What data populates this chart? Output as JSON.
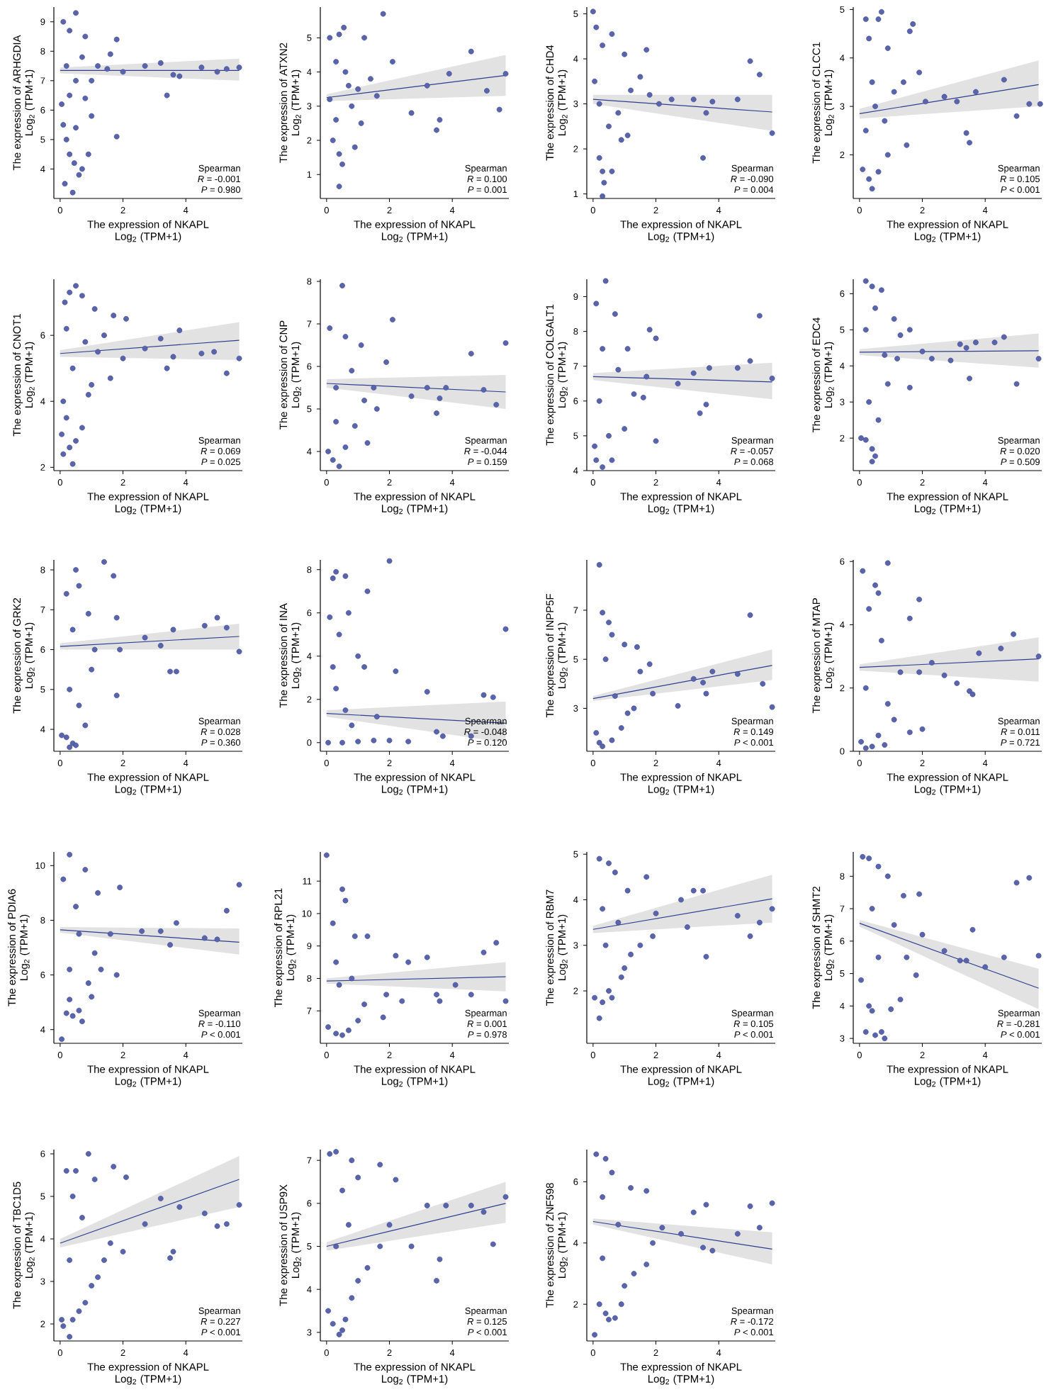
{
  "chart_data": [
    {
      "type": "scatter",
      "xlabel": "The expression of NKAPL\nLog$_{2}$ (TPM+1)",
      "ylabel": "The expression of ARHGDIA\nLog$_{2}$ (TPM+1)",
      "xlim": [
        -0.2,
        5.8
      ],
      "ylim": [
        3.0,
        9.5
      ],
      "xticks": [
        0,
        2,
        4
      ],
      "yticks": [
        4,
        5,
        6,
        7,
        8,
        9
      ],
      "annotations": [
        "Spearman",
        "*R* = -0.001",
        "*P* = 0.980"
      ],
      "series": [
        {
          "marker": "circle",
          "color": "#5a64ab",
          "x": [
            0.1,
            0.5,
            0.3,
            0.8,
            0.05,
            0.1,
            0.2,
            0.3,
            0.45,
            0.5,
            0.7,
            0.9,
            0.6,
            0.15,
            0.4,
            1.0,
            1.2,
            1.5,
            1.8,
            1.8,
            1.6,
            2.0,
            2.7,
            3.2,
            3.4,
            3.6,
            3.8,
            4.5,
            5.0,
            5.3,
            5.7,
            0.2,
            0.5,
            0.3,
            0.7,
            1.0,
            0.8
          ],
          "values": [
            9.0,
            9.3,
            8.7,
            8.5,
            6.2,
            5.5,
            5.0,
            4.5,
            4.2,
            5.4,
            4.0,
            4.5,
            3.8,
            3.5,
            3.2,
            5.8,
            7.5,
            7.4,
            8.4,
            5.1,
            7.9,
            7.3,
            7.5,
            7.6,
            6.5,
            7.2,
            7.15,
            7.45,
            7.3,
            7.4,
            7.45,
            7.5,
            7.0,
            6.5,
            7.8,
            7.0,
            6.4
          ]
        },
        {
          "type": "line",
          "color": "#2f3d8f",
          "x": [
            0,
            5.7
          ],
          "values": [
            7.35,
            7.35
          ],
          "lower": [
            7.25,
            7.0
          ],
          "upper": [
            7.45,
            7.75
          ]
        }
      ]
    },
    {
      "type": "scatter",
      "xlabel": "The expression of NKAPL\nLog$_{2}$ (TPM+1)",
      "ylabel": "The expression of ATXN2\nLog$_{2}$ (TPM+1)",
      "xlim": [
        -0.2,
        5.8
      ],
      "ylim": [
        0.3,
        5.9
      ],
      "xticks": [
        0,
        2,
        4
      ],
      "yticks": [
        1,
        2,
        3,
        4,
        5
      ],
      "annotations": [
        "Spearman",
        "*R* = 0.100",
        "*P* = 0.001"
      ],
      "series": [
        {
          "marker": "circle",
          "color": "#5a64ab",
          "x": [
            0.1,
            0.4,
            0.55,
            1.2,
            1.8,
            0.3,
            0.6,
            0.8,
            0.2,
            0.4,
            0.5,
            0.4,
            0.9,
            1.0,
            1.4,
            2.1,
            2.7,
            3.2,
            3.5,
            3.6,
            3.9,
            4.6,
            5.1,
            5.5,
            5.7,
            0.1,
            0.3,
            0.7,
            1.1,
            1.6
          ],
          "values": [
            5.0,
            5.1,
            5.3,
            5.0,
            5.7,
            4.3,
            4.0,
            3.0,
            2.0,
            1.6,
            1.3,
            0.65,
            1.8,
            3.5,
            3.8,
            4.3,
            2.8,
            3.6,
            2.3,
            2.6,
            3.95,
            4.6,
            3.45,
            2.9,
            3.95,
            3.2,
            2.6,
            3.6,
            2.5,
            3.3
          ]
        },
        {
          "type": "line",
          "color": "#2f3d8f",
          "x": [
            0,
            5.7
          ],
          "values": [
            3.25,
            3.9
          ],
          "lower": [
            3.15,
            3.3
          ],
          "upper": [
            3.35,
            4.5
          ]
        }
      ]
    },
    {
      "type": "scatter",
      "xlabel": "The expression of NKAPL\nLog$_{2}$ (TPM+1)",
      "ylabel": "The expression of CHD4\nLog$_{2}$ (TPM+1)",
      "xlim": [
        -0.2,
        5.8
      ],
      "ylim": [
        0.9,
        5.15
      ],
      "xticks": [
        0,
        2,
        4
      ],
      "yticks": [
        1,
        2,
        3,
        4,
        5
      ],
      "annotations": [
        "Spearman",
        "*R* = -0.090",
        "*P* = 0.004"
      ],
      "series": [
        {
          "marker": "circle",
          "color": "#5a64ab",
          "x": [
            0.0,
            0.1,
            0.6,
            1.0,
            1.7,
            0.3,
            0.2,
            0.5,
            0.2,
            0.3,
            0.35,
            0.3,
            0.6,
            0.9,
            1.2,
            1.5,
            1.8,
            2.1,
            2.5,
            3.2,
            3.5,
            3.6,
            3.8,
            4.6,
            5.0,
            5.3,
            5.7,
            0.8,
            1.1,
            0.05
          ],
          "values": [
            5.05,
            4.7,
            4.55,
            4.1,
            4.2,
            4.3,
            3.0,
            2.5,
            1.8,
            1.5,
            1.25,
            0.95,
            1.5,
            2.2,
            3.3,
            3.6,
            3.2,
            3.0,
            3.1,
            3.1,
            1.8,
            2.8,
            3.05,
            3.1,
            3.95,
            3.65,
            2.35,
            2.8,
            2.3,
            3.5
          ]
        },
        {
          "type": "line",
          "color": "#2f3d8f",
          "x": [
            0,
            5.7
          ],
          "values": [
            3.1,
            2.82
          ],
          "lower": [
            3.0,
            2.4
          ],
          "upper": [
            3.2,
            3.2
          ]
        }
      ]
    },
    {
      "type": "scatter",
      "xlabel": "The expression of NKAPL\nLog$_{2}$ (TPM+1)",
      "ylabel": "The expression of CLCC1\nLog$_{2}$ (TPM+1)",
      "xlim": [
        -0.2,
        5.8
      ],
      "ylim": [
        1.1,
        5.05
      ],
      "xticks": [
        0,
        2,
        4
      ],
      "yticks": [
        2,
        3,
        4,
        5
      ],
      "annotations": [
        "Spearman",
        "*R* = 0.105",
        "*P* < 0.001"
      ],
      "series": [
        {
          "marker": "circle",
          "color": "#5a64ab",
          "x": [
            0.2,
            0.3,
            0.6,
            0.7,
            0.9,
            1.6,
            1.7,
            0.4,
            0.2,
            0.1,
            0.3,
            0.4,
            0.6,
            0.9,
            1.1,
            1.4,
            1.5,
            1.9,
            2.1,
            2.7,
            3.1,
            3.4,
            3.5,
            3.7,
            4.6,
            5.0,
            5.4,
            5.75,
            0.5,
            0.8
          ],
          "values": [
            4.8,
            4.4,
            4.8,
            4.95,
            4.2,
            4.55,
            4.7,
            3.5,
            2.5,
            1.7,
            1.5,
            1.3,
            1.65,
            2.0,
            3.3,
            3.5,
            2.2,
            3.7,
            3.1,
            3.2,
            3.1,
            2.45,
            2.25,
            3.3,
            3.55,
            2.8,
            3.05,
            3.05,
            3.0,
            2.7
          ]
        },
        {
          "type": "line",
          "color": "#2f3d8f",
          "x": [
            0,
            5.7
          ],
          "values": [
            2.85,
            3.45
          ],
          "lower": [
            2.75,
            3.0
          ],
          "upper": [
            2.95,
            3.95
          ]
        }
      ]
    },
    {
      "type": "scatter",
      "xlabel": "The expression of NKAPL\nLog$_{2}$ (TPM+1)",
      "ylabel": "The expression of CNOT1\nLog$_{2}$ (TPM+1)",
      "xlim": [
        -0.2,
        5.8
      ],
      "ylim": [
        1.9,
        7.7
      ],
      "xticks": [
        0,
        2,
        4
      ],
      "yticks": [
        2,
        4,
        6
      ],
      "annotations": [
        "Spearman",
        "*R* = 0.069",
        "*P* = 0.025"
      ],
      "series": [
        {
          "marker": "circle",
          "color": "#5a64ab",
          "x": [
            0.5,
            0.3,
            0.15,
            0.7,
            1.1,
            1.7,
            2.1,
            0.2,
            0.4,
            0.1,
            0.2,
            0.05,
            0.1,
            0.3,
            0.4,
            0.5,
            0.7,
            0.9,
            1.2,
            1.4,
            1.6,
            2.0,
            2.7,
            3.2,
            3.4,
            3.6,
            3.8,
            4.5,
            4.9,
            5.3,
            5.7,
            0.8,
            1.0
          ],
          "values": [
            7.5,
            7.3,
            7.0,
            7.2,
            6.8,
            6.6,
            6.5,
            6.2,
            5.0,
            4.0,
            3.5,
            3.0,
            2.4,
            2.6,
            2.1,
            2.8,
            3.2,
            4.2,
            5.5,
            6.0,
            4.7,
            5.3,
            5.6,
            5.9,
            5.0,
            5.35,
            6.15,
            5.45,
            5.5,
            4.85,
            5.3,
            5.8,
            4.5
          ]
        },
        {
          "type": "line",
          "color": "#2f3d8f",
          "x": [
            0,
            5.7
          ],
          "values": [
            5.45,
            5.85
          ],
          "lower": [
            5.35,
            5.25
          ],
          "upper": [
            5.55,
            6.4
          ]
        }
      ]
    },
    {
      "type": "scatter",
      "xlabel": "The expression of NKAPL\nLog$_{2}$ (TPM+1)",
      "ylabel": "The expression of CNP\nLog$_{2}$ (TPM+1)",
      "xlim": [
        -0.2,
        5.8
      ],
      "ylim": [
        3.55,
        8.05
      ],
      "xticks": [
        0,
        2,
        4
      ],
      "yticks": [
        4,
        5,
        6,
        7,
        8
      ],
      "annotations": [
        "Spearman",
        "*R* = -0.044",
        "*P* = 0.159"
      ],
      "series": [
        {
          "marker": "circle",
          "color": "#5a64ab",
          "x": [
            0.5,
            0.1,
            0.6,
            1.1,
            2.1,
            1.9,
            0.3,
            0.05,
            0.2,
            0.4,
            0.6,
            1.3,
            0.9,
            1.2,
            1.5,
            2.7,
            3.2,
            3.5,
            3.6,
            3.8,
            4.6,
            5.0,
            5.4,
            5.7,
            0.8,
            1.6,
            0.3
          ],
          "values": [
            7.9,
            6.9,
            6.7,
            6.5,
            7.1,
            6.1,
            5.5,
            4.0,
            3.8,
            3.65,
            4.1,
            4.2,
            4.6,
            5.2,
            5.5,
            5.3,
            5.5,
            4.9,
            5.25,
            5.5,
            6.3,
            5.45,
            5.1,
            6.55,
            5.9,
            5.0,
            4.7
          ]
        },
        {
          "type": "line",
          "color": "#2f3d8f",
          "x": [
            0,
            5.7
          ],
          "values": [
            5.6,
            5.4
          ],
          "lower": [
            5.5,
            5.0
          ],
          "upper": [
            5.7,
            5.8
          ]
        }
      ]
    },
    {
      "type": "scatter",
      "xlabel": "The expression of NKAPL\nLog$_{2}$ (TPM+1)",
      "ylabel": "The expression of COLGALT1\nLog$_{2}$ (TPM+1)",
      "xlim": [
        -0.2,
        5.8
      ],
      "ylim": [
        4.0,
        9.5
      ],
      "xticks": [
        0,
        2,
        4
      ],
      "yticks": [
        4,
        5,
        6,
        7,
        8,
        9
      ],
      "annotations": [
        "Spearman",
        "*R* = -0.057",
        "*P* = 0.068"
      ],
      "series": [
        {
          "marker": "circle",
          "color": "#5a64ab",
          "x": [
            0.4,
            0.1,
            0.7,
            1.8,
            2.0,
            0.3,
            0.2,
            0.05,
            0.1,
            0.3,
            0.6,
            0.5,
            1.0,
            1.3,
            1.6,
            2.0,
            1.7,
            2.7,
            3.2,
            3.4,
            3.6,
            3.7,
            4.6,
            5.0,
            5.3,
            5.7,
            0.8,
            1.1
          ],
          "values": [
            9.45,
            8.8,
            8.5,
            8.05,
            7.8,
            7.5,
            6.0,
            4.7,
            4.3,
            4.1,
            4.3,
            5.0,
            5.2,
            6.2,
            6.1,
            4.85,
            6.7,
            6.5,
            6.8,
            5.65,
            5.9,
            6.95,
            6.95,
            7.15,
            8.45,
            6.65,
            6.9,
            7.5
          ]
        },
        {
          "type": "line",
          "color": "#2f3d8f",
          "x": [
            0,
            5.7
          ],
          "values": [
            6.7,
            6.55
          ],
          "lower": [
            6.6,
            6.05
          ],
          "upper": [
            6.8,
            7.1
          ]
        }
      ]
    },
    {
      "type": "scatter",
      "xlabel": "The expression of NKAPL\nLog$_{2}$ (TPM+1)",
      "ylabel": "The expression of EDC4\nLog$_{2}$ (TPM+1)",
      "xlim": [
        -0.2,
        5.8
      ],
      "ylim": [
        1.1,
        6.4
      ],
      "xticks": [
        0,
        2,
        4
      ],
      "yticks": [
        2,
        3,
        4,
        5,
        6
      ],
      "annotations": [
        "Spearman",
        "*R* = 0.020",
        "*P* = 0.509"
      ],
      "series": [
        {
          "marker": "circle",
          "color": "#5a64ab",
          "x": [
            0.2,
            0.4,
            0.7,
            0.5,
            1.1,
            1.3,
            1.6,
            0.2,
            0.05,
            0.2,
            0.4,
            0.5,
            0.4,
            0.6,
            0.9,
            1.2,
            1.6,
            2.0,
            2.3,
            2.9,
            3.2,
            3.4,
            3.5,
            3.7,
            4.3,
            4.6,
            5.0,
            5.7,
            0.3,
            0.8
          ],
          "values": [
            6.35,
            6.2,
            6.1,
            5.6,
            5.3,
            4.85,
            5.0,
            5.0,
            2.0,
            1.95,
            1.7,
            1.5,
            1.35,
            2.5,
            3.5,
            4.2,
            3.4,
            4.4,
            4.2,
            4.15,
            4.6,
            4.5,
            3.65,
            4.65,
            4.65,
            4.8,
            3.5,
            4.2,
            3.0,
            4.3
          ]
        },
        {
          "type": "line",
          "color": "#2f3d8f",
          "x": [
            0,
            5.7
          ],
          "values": [
            4.38,
            4.42
          ],
          "lower": [
            4.3,
            3.95
          ],
          "upper": [
            4.46,
            4.9
          ]
        }
      ]
    },
    {
      "type": "scatter",
      "xlabel": "The expression of NKAPL\nLog$_{2}$ (TPM+1)",
      "ylabel": "The expression of GRK2\nLog$_{2}$ (TPM+1)",
      "xlim": [
        -0.2,
        5.8
      ],
      "ylim": [
        3.45,
        8.25
      ],
      "xticks": [
        0,
        2,
        4
      ],
      "yticks": [
        4,
        5,
        6,
        7,
        8
      ],
      "annotations": [
        "Spearman",
        "*R* = 0.028",
        "*P* = 0.360"
      ],
      "series": [
        {
          "marker": "circle",
          "color": "#5a64ab",
          "x": [
            0.2,
            0.6,
            0.5,
            1.4,
            1.7,
            1.8,
            0.4,
            0.05,
            0.2,
            0.3,
            0.4,
            0.5,
            0.8,
            0.6,
            1.0,
            1.1,
            1.8,
            1.9,
            2.7,
            3.2,
            3.5,
            3.6,
            3.7,
            4.6,
            5.0,
            5.3,
            5.7,
            0.3,
            0.9
          ],
          "values": [
            7.4,
            7.6,
            8.0,
            8.2,
            7.85,
            6.8,
            6.5,
            3.85,
            3.8,
            3.55,
            3.65,
            3.6,
            4.1,
            4.6,
            5.5,
            6.0,
            4.85,
            6.0,
            6.3,
            6.1,
            5.45,
            6.5,
            5.45,
            6.6,
            6.8,
            6.55,
            5.95,
            5.0,
            6.9
          ]
        },
        {
          "type": "line",
          "color": "#2f3d8f",
          "x": [
            0,
            5.7
          ],
          "values": [
            6.08,
            6.33
          ],
          "lower": [
            6.0,
            6.0
          ],
          "upper": [
            6.16,
            6.65
          ]
        }
      ]
    },
    {
      "type": "scatter",
      "xlabel": "The expression of NKAPL\nLog$_{2}$ (TPM+1)",
      "ylabel": "The expression of INA\nLog$_{2}$ (TPM+1)",
      "xlim": [
        -0.2,
        5.8
      ],
      "ylim": [
        -0.4,
        8.45
      ],
      "xticks": [
        0,
        2,
        4
      ],
      "yticks": [
        0,
        2,
        4,
        6,
        8
      ],
      "annotations": [
        "Spearman",
        "*R* = -0.048",
        "*P* = 0.120"
      ],
      "series": [
        {
          "marker": "circle",
          "color": "#5a64ab",
          "x": [
            0.3,
            0.2,
            0.6,
            2.0,
            1.3,
            0.1,
            0.4,
            0.7,
            1.0,
            1.2,
            2.2,
            0.05,
            0.5,
            1.0,
            1.5,
            2.0,
            2.6,
            3.2,
            3.5,
            3.7,
            4.6,
            5.0,
            5.3,
            5.7,
            0.3,
            0.6,
            0.2,
            0.8,
            1.6
          ],
          "values": [
            7.9,
            7.6,
            7.7,
            8.4,
            7.0,
            5.8,
            5.0,
            6.0,
            4.0,
            3.5,
            3.3,
            0.0,
            0.0,
            0.05,
            0.1,
            0.1,
            0.05,
            2.35,
            0.5,
            0.3,
            0.3,
            2.2,
            2.1,
            5.25,
            2.5,
            1.5,
            3.5,
            0.8,
            1.2
          ]
        },
        {
          "type": "line",
          "color": "#2f3d8f",
          "x": [
            0,
            5.7
          ],
          "values": [
            1.35,
            0.9
          ],
          "lower": [
            1.2,
            0.0
          ],
          "upper": [
            1.5,
            1.9
          ]
        }
      ]
    },
    {
      "type": "scatter",
      "xlabel": "The expression of NKAPL\nLog$_{2}$ (TPM+1)",
      "ylabel": "The expression of INPP5F\nLog$_{2}$ (TPM+1)",
      "xlim": [
        -0.2,
        5.8
      ],
      "ylim": [
        1.25,
        9.05
      ],
      "xticks": [
        0,
        2,
        4
      ],
      "yticks": [
        3,
        5,
        7
      ],
      "annotations": [
        "Spearman",
        "*R* = 0.149",
        "*P* < 0.001"
      ],
      "series": [
        {
          "marker": "circle",
          "color": "#5a64ab",
          "x": [
            0.2,
            0.3,
            0.5,
            0.6,
            1.0,
            1.4,
            1.8,
            0.4,
            0.1,
            0.2,
            0.3,
            0.6,
            0.9,
            1.1,
            1.3,
            1.9,
            2.7,
            3.2,
            3.5,
            3.6,
            3.8,
            4.6,
            5.0,
            5.4,
            5.7,
            0.7,
            1.5
          ],
          "values": [
            8.85,
            6.9,
            6.5,
            6.0,
            5.6,
            5.5,
            4.8,
            5.0,
            2.0,
            1.6,
            1.45,
            1.7,
            2.2,
            2.8,
            3.0,
            3.6,
            3.1,
            4.2,
            4.05,
            3.6,
            4.5,
            4.4,
            6.8,
            4.0,
            3.05,
            3.5,
            4.5
          ]
        },
        {
          "type": "line",
          "color": "#2f3d8f",
          "x": [
            0,
            5.7
          ],
          "values": [
            3.4,
            4.75
          ],
          "lower": [
            3.3,
            4.15
          ],
          "upper": [
            3.5,
            5.4
          ]
        }
      ]
    },
    {
      "type": "scatter",
      "xlabel": "The expression of NKAPL\nLog$_{2}$ (TPM+1)",
      "ylabel": "The expression of MTAP\nLog$_{2}$ (TPM+1)",
      "xlim": [
        -0.2,
        5.8
      ],
      "ylim": [
        0,
        6.05
      ],
      "xticks": [
        0,
        2,
        4
      ],
      "yticks": [
        0,
        2,
        4,
        6
      ],
      "annotations": [
        "Spearman",
        "*R* = 0.011",
        "*P* = 0.721"
      ],
      "series": [
        {
          "marker": "circle",
          "color": "#5a64ab",
          "x": [
            0.1,
            0.5,
            0.6,
            0.9,
            1.9,
            1.6,
            0.3,
            0.05,
            0.2,
            0.4,
            0.6,
            0.8,
            0.9,
            1.3,
            1.6,
            2.0,
            1.9,
            2.3,
            2.7,
            3.1,
            3.5,
            3.6,
            3.8,
            4.5,
            4.9,
            5.7,
            0.2,
            0.7,
            1.1
          ],
          "values": [
            5.7,
            5.25,
            5.0,
            5.95,
            4.8,
            4.2,
            4.5,
            0.3,
            0.1,
            0.15,
            0.5,
            0.2,
            1.5,
            2.5,
            0.6,
            0.7,
            2.5,
            2.8,
            2.4,
            2.15,
            1.9,
            1.8,
            3.1,
            3.25,
            3.7,
            3.0,
            2.0,
            3.5,
            1.0
          ]
        },
        {
          "type": "line",
          "color": "#2f3d8f",
          "x": [
            0,
            5.7
          ],
          "values": [
            2.65,
            2.92
          ],
          "lower": [
            2.55,
            2.2
          ],
          "upper": [
            2.75,
            3.6
          ]
        }
      ]
    },
    {
      "type": "scatter",
      "xlabel": "The expression of NKAPL\nLog$_{2}$ (TPM+1)",
      "ylabel": "The expression of PDIA6\nLog$_{2}$ (TPM+1)",
      "xlim": [
        -0.2,
        5.8
      ],
      "ylim": [
        3.5,
        10.5
      ],
      "xticks": [
        0,
        2,
        4
      ],
      "yticks": [
        4,
        6,
        8,
        10
      ],
      "annotations": [
        "Spearman",
        "*R* = -0.110",
        "*P* < 0.001"
      ],
      "series": [
        {
          "marker": "circle",
          "color": "#5a64ab",
          "x": [
            0.3,
            0.1,
            0.8,
            1.2,
            1.9,
            0.5,
            0.05,
            0.2,
            0.3,
            0.4,
            0.6,
            0.7,
            1.0,
            0.9,
            1.3,
            1.6,
            1.8,
            2.6,
            3.2,
            3.5,
            3.7,
            4.6,
            5.0,
            5.3,
            5.7,
            0.3,
            0.6,
            1.1
          ],
          "values": [
            10.4,
            9.5,
            9.85,
            9.0,
            9.2,
            8.5,
            3.65,
            4.6,
            5.1,
            4.5,
            4.7,
            4.3,
            5.2,
            5.7,
            6.2,
            7.5,
            6.0,
            7.6,
            7.6,
            7.1,
            7.9,
            7.35,
            7.3,
            8.35,
            9.3,
            6.2,
            7.5,
            6.8
          ]
        },
        {
          "type": "line",
          "color": "#2f3d8f",
          "x": [
            0,
            5.7
          ],
          "values": [
            7.65,
            7.2
          ],
          "lower": [
            7.55,
            6.75
          ],
          "upper": [
            7.75,
            7.7
          ]
        }
      ]
    },
    {
      "type": "scatter",
      "xlabel": "The expression of NKAPL\nLog$_{2}$ (TPM+1)",
      "ylabel": "The expression of RPL21\nLog$_{2}$ (TPM+1)",
      "xlim": [
        -0.2,
        5.8
      ],
      "ylim": [
        6.0,
        11.9
      ],
      "xticks": [
        0,
        2,
        4
      ],
      "yticks": [
        7,
        8,
        9,
        10,
        11
      ],
      "annotations": [
        "Spearman",
        "*R* = 0.001",
        "*P* = 0.978"
      ],
      "series": [
        {
          "marker": "circle",
          "color": "#5a64ab",
          "x": [
            0.0,
            0.5,
            0.6,
            0.2,
            0.9,
            1.3,
            2.2,
            0.3,
            0.05,
            0.3,
            0.5,
            0.7,
            1.0,
            1.2,
            1.8,
            1.9,
            2.4,
            2.6,
            3.2,
            3.5,
            3.6,
            4.1,
            4.6,
            5.0,
            5.4,
            5.7,
            0.4,
            0.8
          ],
          "values": [
            11.8,
            10.75,
            10.4,
            9.7,
            9.3,
            9.3,
            8.7,
            8.5,
            6.5,
            6.3,
            6.25,
            6.4,
            6.7,
            7.2,
            6.8,
            7.5,
            7.3,
            8.5,
            8.65,
            7.5,
            7.3,
            7.8,
            7.5,
            8.8,
            9.1,
            7.3,
            7.8,
            8.0
          ]
        },
        {
          "type": "line",
          "color": "#2f3d8f",
          "x": [
            0,
            5.7
          ],
          "values": [
            7.92,
            8.05
          ],
          "lower": [
            7.84,
            7.6
          ],
          "upper": [
            8.0,
            8.5
          ]
        }
      ]
    },
    {
      "type": "scatter",
      "xlabel": "The expression of NKAPL\nLog$_{2}$ (TPM+1)",
      "ylabel": "The expression of RBM7\nLog$_{2}$ (TPM+1)",
      "xlim": [
        -0.2,
        5.8
      ],
      "ylim": [
        0.85,
        5.05
      ],
      "xticks": [
        0,
        2,
        4
      ],
      "yticks": [
        2,
        3,
        4,
        5
      ],
      "annotations": [
        "Spearman",
        "*R* = 0.105",
        "*P* < 0.001"
      ],
      "series": [
        {
          "marker": "circle",
          "color": "#5a64ab",
          "x": [
            0.2,
            0.5,
            0.7,
            1.7,
            1.1,
            2.8,
            3.2,
            3.5,
            0.3,
            0.05,
            0.2,
            0.3,
            0.5,
            0.6,
            0.9,
            1.2,
            1.5,
            1.9,
            2.0,
            3.0,
            3.6,
            4.6,
            5.0,
            5.3,
            5.7,
            0.4,
            0.8,
            1.0
          ],
          "values": [
            4.9,
            4.8,
            4.6,
            4.5,
            4.2,
            4.0,
            4.2,
            4.2,
            3.8,
            1.85,
            1.4,
            1.75,
            2.0,
            1.85,
            2.3,
            2.8,
            3.0,
            3.2,
            3.7,
            3.4,
            2.75,
            3.65,
            3.2,
            3.5,
            3.8,
            3.0,
            3.5,
            2.5
          ]
        },
        {
          "type": "line",
          "color": "#2f3d8f",
          "x": [
            0,
            5.7
          ],
          "values": [
            3.35,
            4.02
          ],
          "lower": [
            3.27,
            3.5
          ],
          "upper": [
            3.43,
            4.55
          ]
        }
      ]
    },
    {
      "type": "scatter",
      "xlabel": "The expression of NKAPL\nLog$_{2}$ (TPM+1)",
      "ylabel": "The expression of SHMT2\nLog$_{2}$ (TPM+1)",
      "xlim": [
        -0.2,
        5.8
      ],
      "ylim": [
        2.85,
        8.75
      ],
      "xticks": [
        0,
        2,
        4
      ],
      "yticks": [
        3,
        4,
        5,
        6,
        7,
        8
      ],
      "annotations": [
        "Spearman",
        "*R* = -0.281",
        "*P* < 0.001"
      ],
      "series": [
        {
          "marker": "circle",
          "color": "#5a64ab",
          "x": [
            0.1,
            0.3,
            0.6,
            0.9,
            1.4,
            1.9,
            0.4,
            0.05,
            0.2,
            0.3,
            0.4,
            0.5,
            0.7,
            0.8,
            1.0,
            1.3,
            1.5,
            1.8,
            2.0,
            2.7,
            3.2,
            3.4,
            3.6,
            4.0,
            4.6,
            5.0,
            5.4,
            5.7,
            0.6,
            1.1
          ],
          "values": [
            8.6,
            8.55,
            8.3,
            8.0,
            7.4,
            7.45,
            7.0,
            4.8,
            3.2,
            4.0,
            3.85,
            3.1,
            3.2,
            3.0,
            3.9,
            4.2,
            5.5,
            4.95,
            6.2,
            5.7,
            5.4,
            5.4,
            6.35,
            5.2,
            5.5,
            7.8,
            7.95,
            5.55,
            5.5,
            6.5
          ]
        },
        {
          "type": "line",
          "color": "#2f3d8f",
          "x": [
            0,
            5.7
          ],
          "values": [
            6.55,
            4.55
          ],
          "lower": [
            6.45,
            3.9
          ],
          "upper": [
            6.65,
            5.15
          ]
        }
      ]
    },
    {
      "type": "scatter",
      "xlabel": "The expression of NKAPL\nLog$_{2}$ (TPM+1)",
      "ylabel": "The expression of TBC1D5\nLog$_{2}$ (TPM+1)",
      "xlim": [
        -0.2,
        5.8
      ],
      "ylim": [
        1.6,
        6.1
      ],
      "xticks": [
        0,
        2,
        4
      ],
      "yticks": [
        2,
        3,
        4,
        5,
        6
      ],
      "annotations": [
        "Spearman",
        "*R* = 0.227",
        "*P* < 0.001"
      ],
      "series": [
        {
          "marker": "circle",
          "color": "#5a64ab",
          "x": [
            0.9,
            0.2,
            0.5,
            1.1,
            1.7,
            2.1,
            0.4,
            0.05,
            0.1,
            0.3,
            0.4,
            0.6,
            0.8,
            1.0,
            1.2,
            1.4,
            1.6,
            2.0,
            2.7,
            3.2,
            3.5,
            3.6,
            3.8,
            4.6,
            5.0,
            5.3,
            5.7,
            0.3,
            0.7
          ],
          "values": [
            6.0,
            5.6,
            5.6,
            5.4,
            5.7,
            5.45,
            5.0,
            2.1,
            1.95,
            1.7,
            2.1,
            2.3,
            2.5,
            2.9,
            3.1,
            3.5,
            3.9,
            3.7,
            4.35,
            4.95,
            3.55,
            3.7,
            4.75,
            4.6,
            4.3,
            4.35,
            4.8,
            3.5,
            4.5
          ]
        },
        {
          "type": "line",
          "color": "#2f3d8f",
          "x": [
            0,
            5.7
          ],
          "values": [
            3.9,
            5.4
          ],
          "lower": [
            3.8,
            4.75
          ],
          "upper": [
            4.0,
            5.95
          ]
        }
      ]
    },
    {
      "type": "scatter",
      "xlabel": "The expression of NKAPL\nLog$_{2}$ (TPM+1)",
      "ylabel": "The expression of USP9X\nLog$_{2}$ (TPM+1)",
      "xlim": [
        -0.2,
        5.8
      ],
      "ylim": [
        2.8,
        7.25
      ],
      "xticks": [
        0,
        2,
        4
      ],
      "yticks": [
        3,
        4,
        5,
        6,
        7
      ],
      "annotations": [
        "Spearman",
        "*R* = 0.125",
        "*P* < 0.001"
      ],
      "series": [
        {
          "marker": "circle",
          "color": "#5a64ab",
          "x": [
            0.1,
            0.3,
            0.8,
            1.0,
            1.7,
            2.2,
            0.5,
            0.05,
            0.2,
            0.4,
            0.5,
            0.6,
            0.8,
            1.0,
            1.3,
            1.7,
            2.0,
            2.7,
            3.2,
            3.5,
            3.6,
            3.8,
            4.6,
            5.0,
            5.3,
            5.7,
            0.3,
            0.7
          ],
          "values": [
            7.15,
            7.2,
            7.0,
            6.6,
            6.9,
            6.55,
            6.3,
            3.5,
            3.2,
            2.95,
            3.05,
            3.3,
            3.8,
            4.2,
            4.5,
            5.0,
            5.5,
            5.0,
            5.95,
            4.2,
            4.7,
            5.95,
            5.95,
            5.8,
            5.05,
            6.15,
            5.0,
            5.5
          ]
        },
        {
          "type": "line",
          "color": "#2f3d8f",
          "x": [
            0,
            5.7
          ],
          "values": [
            5.0,
            6.0
          ],
          "lower": [
            4.9,
            5.55
          ],
          "upper": [
            5.1,
            6.5
          ]
        }
      ]
    },
    {
      "type": "scatter",
      "xlabel": "The expression of NKAPL\nLog$_{2}$ (TPM+1)",
      "ylabel": "The expression of ZNF598\nLog$_{2}$ (TPM+1)",
      "xlim": [
        -0.2,
        5.8
      ],
      "ylim": [
        0.8,
        7.05
      ],
      "xticks": [
        0,
        2,
        4
      ],
      "yticks": [
        2,
        4,
        6
      ],
      "annotations": [
        "Spearman",
        "*R* = -0.172",
        "*P* < 0.001"
      ],
      "series": [
        {
          "marker": "circle",
          "color": "#5a64ab",
          "x": [
            0.1,
            0.4,
            0.6,
            1.2,
            1.7,
            0.3,
            0.05,
            0.2,
            0.4,
            0.5,
            0.7,
            0.9,
            1.0,
            1.3,
            1.7,
            1.9,
            2.2,
            2.8,
            3.2,
            3.5,
            3.6,
            3.8,
            4.6,
            5.0,
            5.3,
            5.7,
            0.3,
            0.8
          ],
          "values": [
            6.9,
            6.75,
            6.3,
            5.8,
            5.7,
            5.5,
            1.0,
            2.0,
            1.7,
            1.5,
            1.55,
            2.0,
            2.6,
            3.0,
            3.3,
            4.0,
            4.5,
            4.3,
            5.0,
            3.85,
            5.25,
            3.75,
            4.3,
            5.2,
            4.5,
            5.3,
            3.5,
            4.6
          ]
        },
        {
          "type": "line",
          "color": "#2f3d8f",
          "x": [
            0,
            5.7
          ],
          "values": [
            4.7,
            3.8
          ],
          "lower": [
            4.6,
            3.3
          ],
          "upper": [
            4.8,
            4.35
          ]
        }
      ]
    }
  ]
}
